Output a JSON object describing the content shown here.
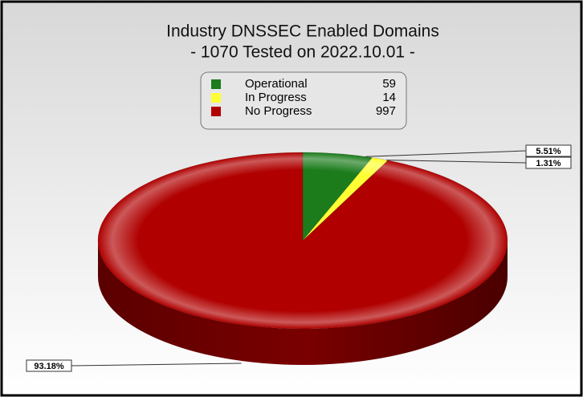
{
  "chart_data": {
    "type": "pie3d",
    "title": "Industry DNSSEC Enabled Domains",
    "subtitle": "- 1070 Tested on 2022.10.01 -",
    "categories": [
      "Operational",
      "In Progress",
      "No Progress"
    ],
    "values": [
      59,
      14,
      997
    ],
    "percents": [
      5.51,
      1.31,
      93.18
    ],
    "percent_labels": [
      "5.51%",
      "1.31%",
      "93.18%"
    ],
    "colors": [
      "#1c7c1c",
      "#ffff33",
      "#b00000"
    ],
    "legend": "top"
  }
}
